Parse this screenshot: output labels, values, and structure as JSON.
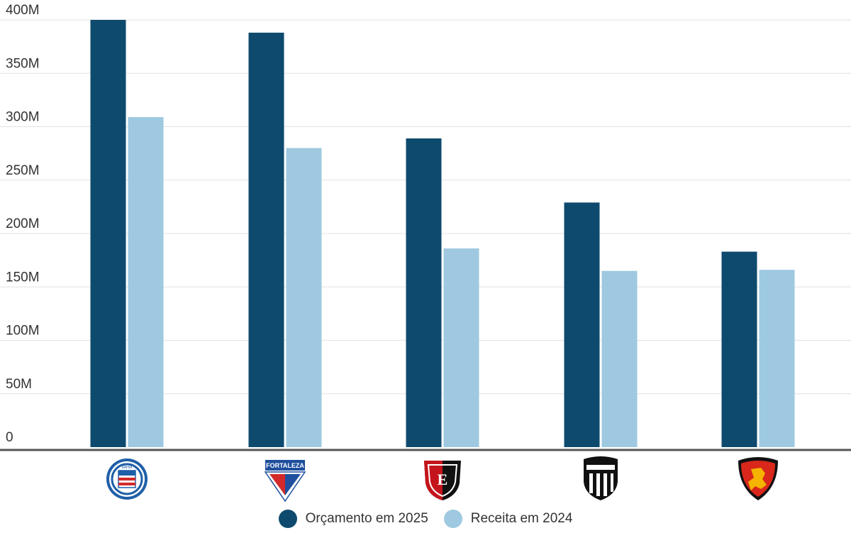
{
  "chart_data": {
    "type": "bar",
    "categories": [
      "Bahia",
      "Fortaleza",
      "Vitória",
      "Ceará",
      "Sport"
    ],
    "series": [
      {
        "name": "Orçamento em 2025",
        "values": [
          400,
          388,
          289,
          229,
          183
        ],
        "color": "#0e4a6e"
      },
      {
        "name": "Receita em 2024",
        "values": [
          309,
          280,
          186,
          165,
          166
        ],
        "color": "#9ec9e0"
      }
    ],
    "unit_suffix": "M",
    "ylim": [
      0,
      400
    ],
    "yticks": [
      0,
      50,
      100,
      150,
      200,
      250,
      300,
      350,
      400
    ],
    "ytick_labels": [
      "0",
      "50M",
      "100M",
      "150M",
      "200M",
      "250M",
      "300M",
      "350M",
      "400M"
    ],
    "grid": true,
    "legend_position": "bottom-center",
    "category_labels": [
      "club crests"
    ]
  },
  "crests": {
    "bahia_text": "BAHIA",
    "fortaleza_text": "FORTALEZA"
  }
}
